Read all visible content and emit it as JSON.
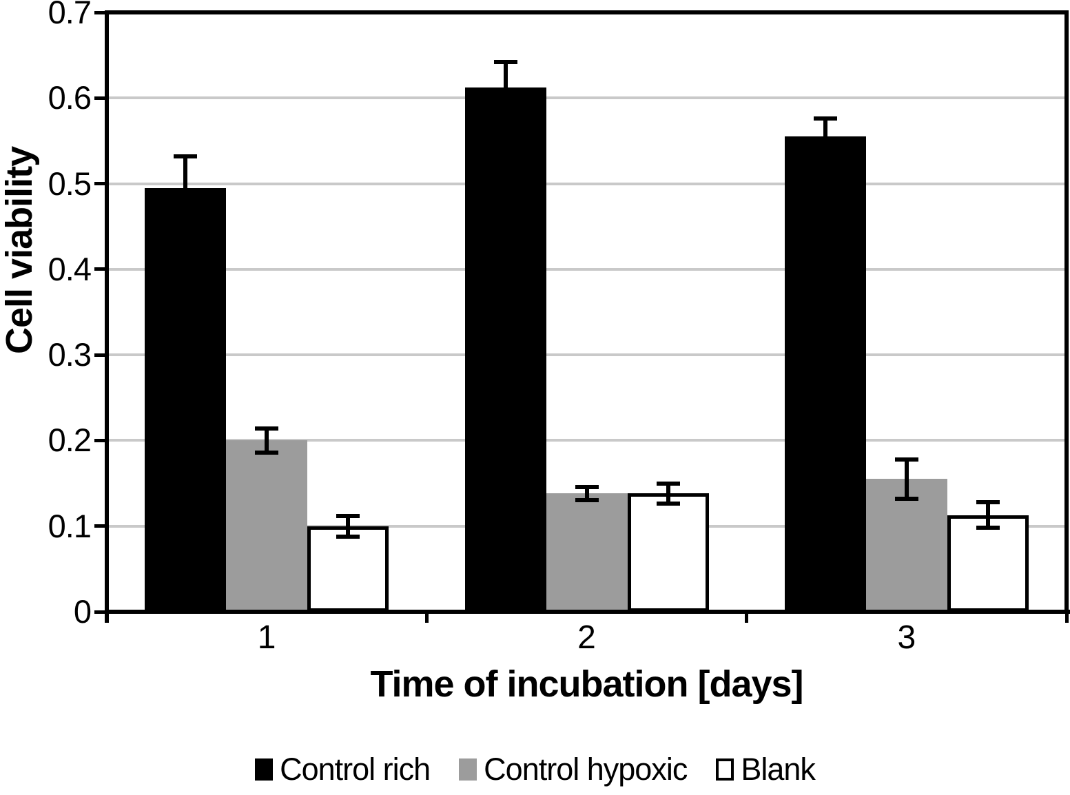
{
  "chart_data": {
    "type": "bar",
    "title": "",
    "xlabel": "Time of incubation [days]",
    "ylabel": "Cell viability",
    "categories": [
      "1",
      "2",
      "3"
    ],
    "series": [
      {
        "name": "Control rich",
        "color": "#000000",
        "outline": false,
        "values": [
          0.495,
          0.612,
          0.555
        ],
        "errors": [
          0.037,
          0.03,
          0.021
        ]
      },
      {
        "name": "Control hypoxic",
        "color": "#9c9c9c",
        "outline": false,
        "values": [
          0.2,
          0.138,
          0.155
        ],
        "errors": [
          0.014,
          0.008,
          0.023
        ]
      },
      {
        "name": "Blank",
        "color": "#ffffff",
        "outline": true,
        "values": [
          0.1,
          0.138,
          0.113
        ],
        "errors": [
          0.012,
          0.012,
          0.015
        ]
      }
    ],
    "ylim": [
      0,
      0.7
    ],
    "y_ticks": [
      "0",
      "0.1",
      "0.2",
      "0.3",
      "0.4",
      "0.5",
      "0.6",
      "0.7"
    ],
    "grid": true,
    "legend_position": "bottom"
  },
  "colors": {
    "grid": "#c9c9c9",
    "axis": "#000000",
    "background": "#ffffff",
    "bar_outline": "#000000"
  }
}
